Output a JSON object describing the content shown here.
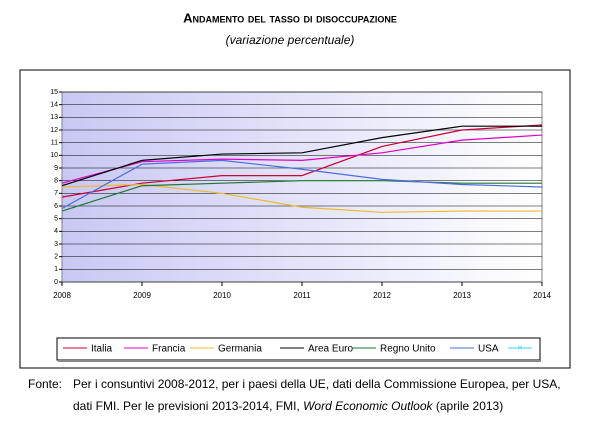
{
  "chart_data": {
    "type": "line",
    "title": "Andamento del tasso di disoccupazione",
    "subtitle": "(variazione percentuale)",
    "categories": [
      "2008",
      "2009",
      "2010",
      "2011",
      "2012",
      "2013",
      "2014"
    ],
    "ylim": [
      0,
      15
    ],
    "yticks": [
      0,
      1,
      2,
      3,
      4,
      5,
      6,
      7,
      8,
      9,
      10,
      11,
      12,
      13,
      14,
      15
    ],
    "grid": true,
    "legend": "bottom",
    "series": [
      {
        "name": "Italia",
        "color": "#cc0033",
        "values": [
          6.7,
          7.8,
          8.4,
          8.4,
          10.7,
          12.0,
          12.4
        ]
      },
      {
        "name": "Francia",
        "color": "#e000c8",
        "values": [
          7.8,
          9.5,
          9.7,
          9.6,
          10.2,
          11.2,
          11.6
        ]
      },
      {
        "name": "Germania",
        "color": "#f0b830",
        "values": [
          7.5,
          7.7,
          7.0,
          5.9,
          5.5,
          5.6,
          5.6
        ]
      },
      {
        "name": "Area Euro",
        "color": "#000000",
        "values": [
          7.6,
          9.6,
          10.1,
          10.2,
          11.4,
          12.3,
          12.3
        ]
      },
      {
        "name": "Regno Unito",
        "color": "#1a7a30",
        "values": [
          5.6,
          7.6,
          7.8,
          8.0,
          8.0,
          7.8,
          7.8
        ]
      },
      {
        "name": "USA",
        "color": "#4a6ee0",
        "values": [
          5.8,
          9.3,
          9.6,
          8.9,
          8.1,
          7.7,
          7.5
        ]
      }
    ]
  },
  "note": {
    "label": "Fonte:",
    "line1": "Per i consuntivi 2008-2012, per i paesi della UE, dati della Commissione Europea, per USA,",
    "line2": "dati FMI. Per le previsioni 2013-2014, FMI,",
    "italic": "Word Economic Outlook",
    "end": "(aprile 2013)"
  }
}
